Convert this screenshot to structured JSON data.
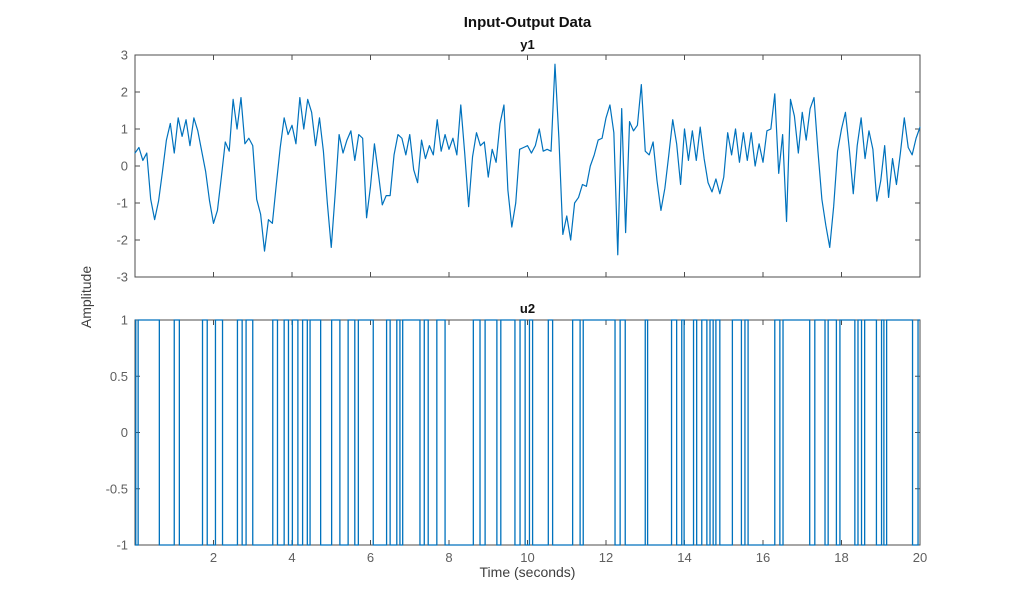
{
  "figure": {
    "title": "Input-Output Data",
    "xlabel": "Time (seconds)",
    "ylabel": "Amplitude",
    "background_color": "#ffffff",
    "line_color": "#0072BD",
    "axis_color": "#4d4d4d",
    "tick_label_color": "#5f5f5f",
    "label_color": "#3f3f3f"
  },
  "chart_data": [
    {
      "type": "line",
      "title": "y1",
      "xlim": [
        0,
        20
      ],
      "ylim": [
        -3,
        3
      ],
      "grid": false,
      "legend": "none",
      "xticks": [
        2,
        4,
        6,
        8,
        10,
        12,
        14,
        16,
        18,
        20
      ],
      "xtick_labels": null,
      "yticks": [
        3,
        2,
        1,
        0,
        -1,
        -2,
        -3
      ],
      "ytick_labels": [
        "3",
        "2",
        "1",
        "0",
        "-1",
        "-2",
        "-3"
      ],
      "x_start": 0,
      "x_step": 0.1,
      "values": [
        0.35,
        0.5,
        0.15,
        0.35,
        -0.9,
        -1.45,
        -0.95,
        -0.15,
        0.7,
        1.15,
        0.35,
        1.3,
        0.8,
        1.25,
        0.55,
        1.3,
        0.95,
        0.4,
        -0.15,
        -0.95,
        -1.55,
        -1.2,
        -0.3,
        0.65,
        0.4,
        1.8,
        1.0,
        1.85,
        0.6,
        0.75,
        0.55,
        -0.9,
        -1.3,
        -2.3,
        -1.45,
        -1.55,
        -0.5,
        0.5,
        1.3,
        0.85,
        1.1,
        0.6,
        1.85,
        1.0,
        1.8,
        1.45,
        0.55,
        1.3,
        0.4,
        -1.0,
        -2.2,
        -0.75,
        0.85,
        0.35,
        0.7,
        0.95,
        0.15,
        0.85,
        0.75,
        -1.4,
        -0.55,
        0.6,
        -0.2,
        -1.05,
        -0.8,
        -0.8,
        0.3,
        0.85,
        0.75,
        0.3,
        0.85,
        -0.1,
        -0.45,
        0.7,
        0.2,
        0.55,
        0.3,
        1.25,
        0.4,
        0.85,
        0.45,
        0.75,
        0.3,
        1.65,
        0.35,
        -1.1,
        0.25,
        0.9,
        0.55,
        0.65,
        -0.3,
        0.45,
        0.1,
        1.15,
        1.65,
        -0.65,
        -1.65,
        -1.0,
        0.45,
        0.5,
        0.55,
        0.35,
        0.55,
        1.0,
        0.4,
        0.45,
        0.4,
        2.75,
        0.75,
        -1.85,
        -1.35,
        -2.0,
        -1.0,
        -0.85,
        -0.5,
        -0.55,
        0.0,
        0.3,
        0.7,
        0.75,
        1.3,
        1.65,
        0.9,
        -2.4,
        1.55,
        -1.8,
        1.2,
        0.95,
        1.1,
        2.2,
        0.4,
        0.3,
        0.65,
        -0.4,
        -1.2,
        -0.6,
        0.3,
        1.25,
        0.6,
        -0.5,
        1.0,
        0.15,
        0.95,
        0.15,
        1.05,
        0.2,
        -0.45,
        -0.7,
        -0.35,
        -0.75,
        -0.3,
        0.9,
        0.3,
        1.0,
        0.1,
        0.9,
        0.15,
        0.9,
        0.0,
        0.6,
        0.1,
        0.95,
        1.0,
        1.95,
        -0.2,
        0.85,
        -1.5,
        1.8,
        1.35,
        0.35,
        1.45,
        0.7,
        1.55,
        1.85,
        0.4,
        -0.9,
        -1.6,
        -2.2,
        -1.1,
        0.4,
        1.0,
        1.45,
        0.45,
        -0.75,
        0.55,
        1.3,
        0.2,
        0.95,
        0.45,
        -0.95,
        -0.4,
        0.55,
        -0.85,
        0.2,
        -0.5,
        0.35,
        1.3,
        0.5,
        0.3,
        0.75,
        1.05
      ]
    },
    {
      "type": "step",
      "title": "u2",
      "xlim": [
        0,
        20
      ],
      "ylim": [
        -1,
        1
      ],
      "grid": false,
      "legend": "none",
      "xticks": [
        2,
        4,
        6,
        8,
        10,
        12,
        14,
        16,
        18,
        20
      ],
      "xtick_labels": [
        "2",
        "4",
        "6",
        "8",
        "10",
        "12",
        "14",
        "16",
        "18",
        "20"
      ],
      "yticks": [
        1,
        0.5,
        0,
        -0.5,
        -1
      ],
      "ytick_labels": [
        "1",
        "0.5",
        "0",
        "-0.5",
        "-1"
      ],
      "initial_value": 1,
      "levels": [
        1,
        -1
      ],
      "transitions": [
        0.02,
        0.08,
        0.62,
        1.0,
        1.13,
        1.72,
        1.84,
        2.05,
        2.23,
        2.61,
        2.73,
        2.83,
        3.0,
        3.51,
        3.63,
        3.8,
        3.91,
        4.01,
        4.15,
        4.27,
        4.39,
        4.46,
        4.73,
        5.01,
        5.22,
        5.43,
        5.6,
        5.69,
        6.07,
        6.41,
        6.5,
        6.67,
        6.75,
        6.82,
        7.26,
        7.37,
        7.47,
        7.69,
        7.9,
        8.62,
        8.79,
        8.92,
        9.22,
        9.32,
        9.68,
        9.81,
        9.94,
        10.05,
        10.13,
        10.53,
        10.64,
        11.15,
        11.34,
        11.42,
        12.23,
        12.36,
        12.49,
        13.0,
        13.06,
        13.67,
        13.8,
        13.93,
        13.99,
        14.23,
        14.31,
        14.44,
        14.57,
        14.65,
        14.73,
        14.8,
        14.9,
        15.22,
        15.45,
        15.54,
        15.62,
        16.3,
        16.43,
        16.51,
        17.19,
        17.32,
        17.58,
        17.66,
        17.87,
        17.96,
        18.34,
        18.42,
        18.51,
        18.59,
        18.89,
        19.02,
        19.08,
        19.15,
        19.81,
        19.95
      ]
    }
  ]
}
